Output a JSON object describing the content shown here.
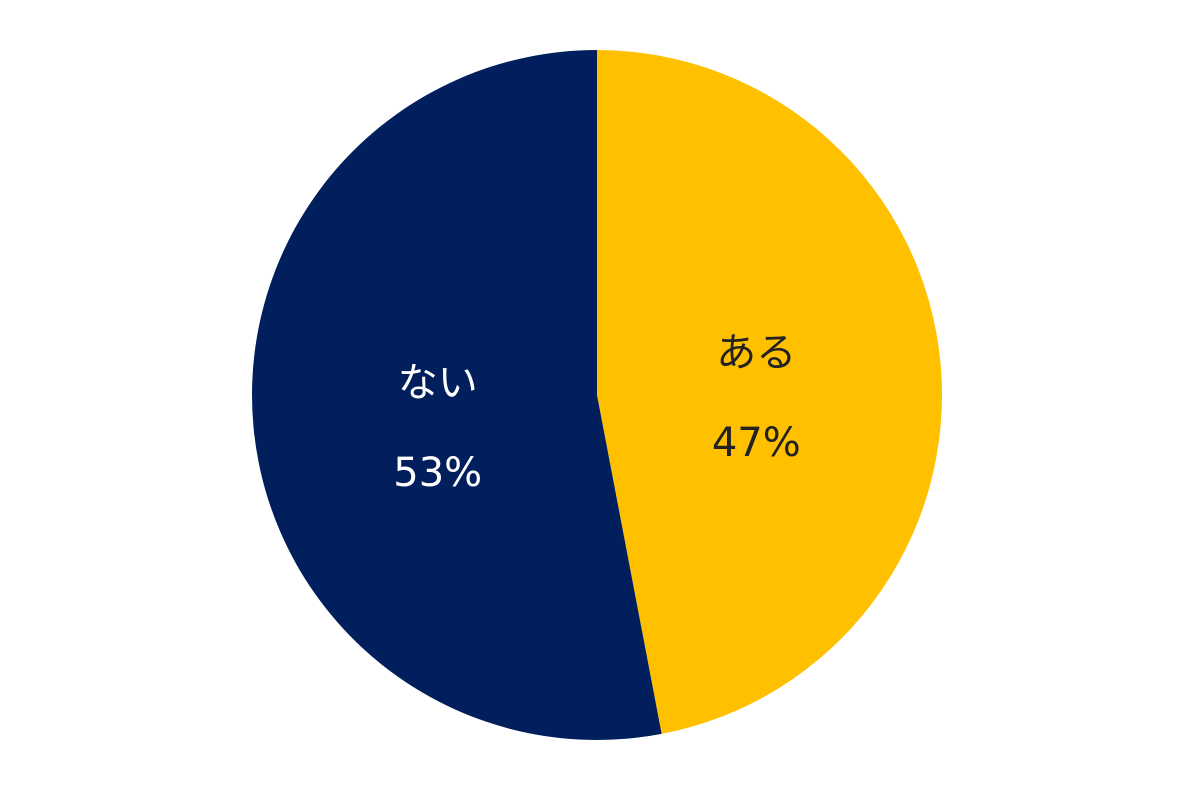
{
  "chart_data": {
    "type": "pie",
    "categories": [
      "ある",
      "ない"
    ],
    "values": [
      47,
      53
    ],
    "value_labels": [
      "47%",
      "53%"
    ],
    "colors": [
      "#FFC000",
      "#001F5C"
    ],
    "label_colors": [
      "#222222",
      "#ffffff"
    ]
  }
}
